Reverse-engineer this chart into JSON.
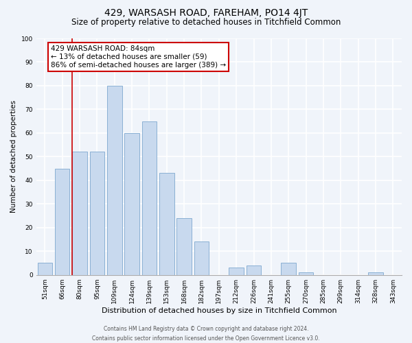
{
  "title": "429, WARSASH ROAD, FAREHAM, PO14 4JT",
  "subtitle": "Size of property relative to detached houses in Titchfield Common",
  "xlabel": "Distribution of detached houses by size in Titchfield Common",
  "ylabel": "Number of detached properties",
  "bar_labels": [
    "51sqm",
    "66sqm",
    "80sqm",
    "95sqm",
    "109sqm",
    "124sqm",
    "139sqm",
    "153sqm",
    "168sqm",
    "182sqm",
    "197sqm",
    "212sqm",
    "226sqm",
    "241sqm",
    "255sqm",
    "270sqm",
    "285sqm",
    "299sqm",
    "314sqm",
    "328sqm",
    "343sqm"
  ],
  "bar_values": [
    5,
    45,
    52,
    52,
    80,
    60,
    65,
    43,
    24,
    14,
    0,
    3,
    4,
    0,
    5,
    1,
    0,
    0,
    0,
    1,
    0
  ],
  "bar_color": "#c8d9ee",
  "bar_edge_color": "#8ab0d4",
  "ylim": [
    0,
    100
  ],
  "yticks": [
    0,
    10,
    20,
    30,
    40,
    50,
    60,
    70,
    80,
    90,
    100
  ],
  "vline_x_index": 2,
  "vline_color": "#cc0000",
  "annotation_title": "429 WARSASH ROAD: 84sqm",
  "annotation_line1": "← 13% of detached houses are smaller (59)",
  "annotation_line2": "86% of semi-detached houses are larger (389) →",
  "footer_line1": "Contains HM Land Registry data © Crown copyright and database right 2024.",
  "footer_line2": "Contains public sector information licensed under the Open Government Licence v3.0.",
  "background_color": "#f0f4fa",
  "grid_color": "#ffffff",
  "title_fontsize": 10,
  "subtitle_fontsize": 8.5,
  "xlabel_fontsize": 8,
  "ylabel_fontsize": 7.5,
  "tick_fontsize": 6.5,
  "annotation_fontsize": 7.5,
  "footer_fontsize": 5.5
}
